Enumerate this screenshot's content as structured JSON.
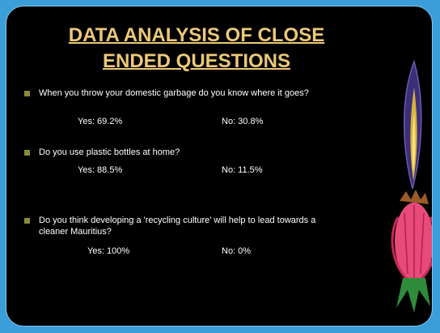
{
  "slide": {
    "title": [
      "DATA ANALYSIS OF CLOSE",
      "ENDED QUESTIONS"
    ],
    "questions": [
      {
        "text": "When you throw your domestic garbage do you know where it goes?",
        "yes": "Yes: 69.2%",
        "no": "No: 30.8%"
      },
      {
        "text": "Do you use plastic bottles at home?",
        "yes": "Yes: 88.5%",
        "no": "No: 11.5%"
      },
      {
        "text": "Do you think developing a 'recycling culture' will help to lead towards a cleaner Mauritius?",
        "yes": "Yes: 100%",
        "no": "No: 0%"
      }
    ]
  }
}
